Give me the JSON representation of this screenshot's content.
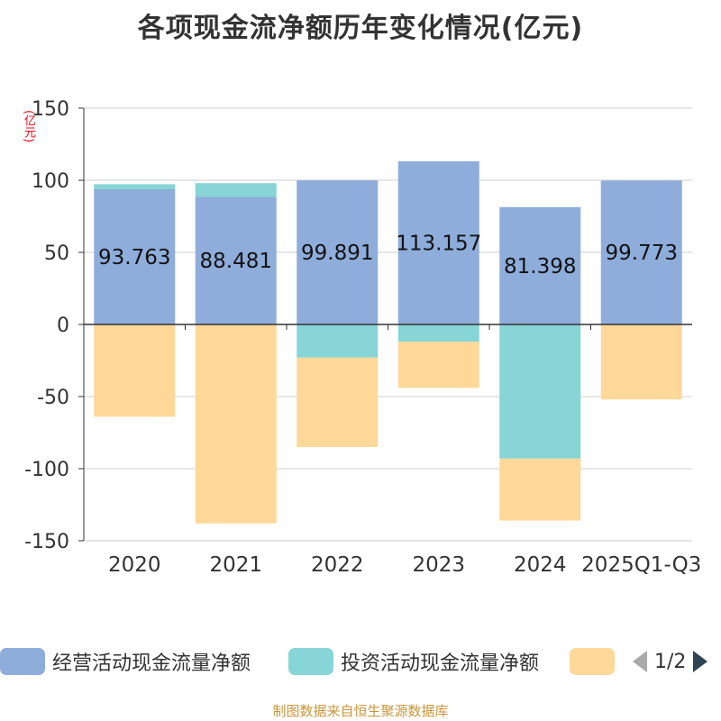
{
  "chart_data": {
    "type": "bar",
    "stacked": true,
    "title": "各项现金流净额历年变化情况(亿元)",
    "unit": "(亿元)",
    "categories": [
      "2020",
      "2021",
      "2022",
      "2023",
      "2024",
      "2025Q1-Q3"
    ],
    "ylim": [
      -150,
      150
    ],
    "yticks": [
      150,
      100,
      50,
      0,
      -50,
      -100,
      -150
    ],
    "ytick_labels": [
      "150",
      "100",
      "50",
      "0",
      "-50",
      "-100",
      "-150"
    ],
    "series": [
      {
        "name": "经营活动现金流量净额",
        "color": "#8eaddb",
        "values": [
          93.763,
          88.481,
          99.891,
          113.157,
          81.398,
          99.773
        ],
        "labels": [
          "93.763",
          "88.481",
          "99.891",
          "113.157",
          "81.398",
          "99.773"
        ]
      },
      {
        "name": "投资活动现金流量净额",
        "color": "#87d5d6",
        "values": [
          3.5,
          9.5,
          -23,
          -12,
          -93,
          0
        ]
      },
      {
        "name": "",
        "color": "#fdd899",
        "values": [
          -64,
          -138,
          -62,
          -32,
          -43,
          -52
        ]
      }
    ],
    "grid": true,
    "legend_position": "bottom"
  },
  "legend": {
    "items": [
      {
        "label": "经营活动现金流量净额",
        "color": "#8eaddb"
      },
      {
        "label": "投资活动现金流量净额",
        "color": "#87d5d6"
      },
      {
        "label": "",
        "color": "#fdd899"
      }
    ],
    "page": "1/2",
    "prev_color": "#aaaaaa",
    "next_color": "#2f4554"
  },
  "footer": "制图数据来自恒生聚源数据库"
}
